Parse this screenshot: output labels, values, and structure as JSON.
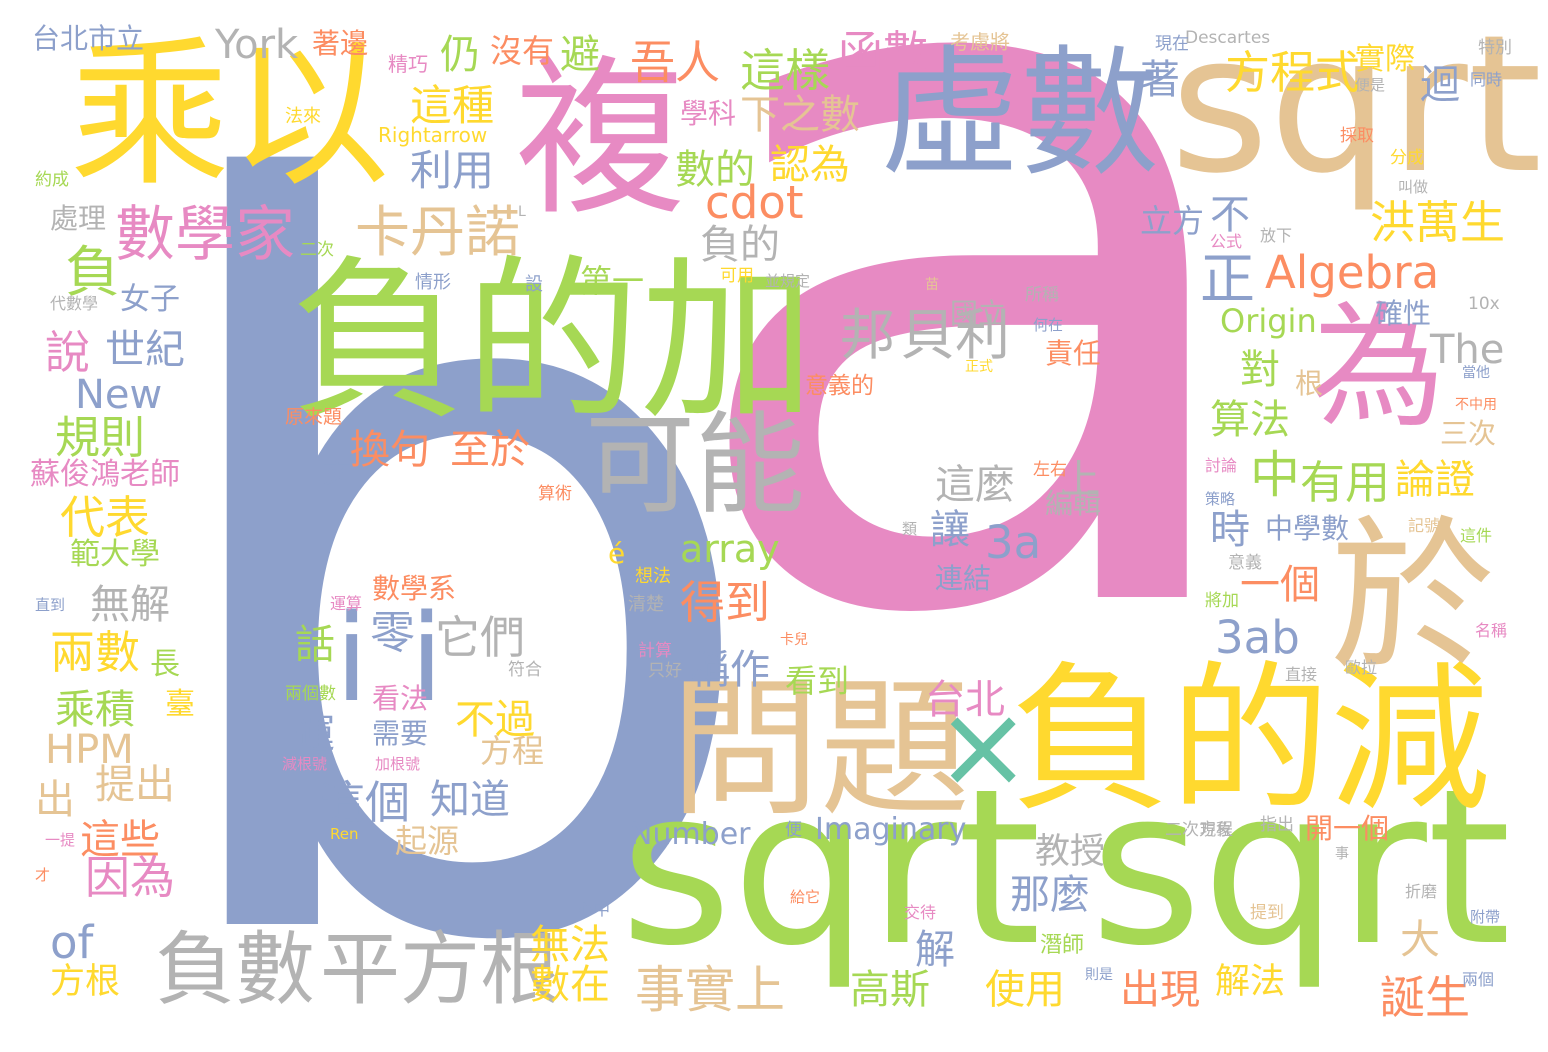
{
  "palette": {
    "green": "#a6d854",
    "yellow": "#ffd92f",
    "tan": "#e5c494",
    "blue": "#8da0cb",
    "pink": "#e78ac3",
    "orange": "#fc8d62",
    "gray": "#b3b3b3",
    "teal": "#66c2a5"
  },
  "words": [
    {
      "text": "a",
      "color": "pink"
    },
    {
      "text": "b",
      "color": "blue"
    },
    {
      "text": "sqrt",
      "color": "green"
    },
    {
      "text": "sqrt",
      "color": "green"
    },
    {
      "text": "sqrt",
      "color": "tan"
    },
    {
      "text": "乘以",
      "color": "yellow"
    },
    {
      "text": "複",
      "color": "pink"
    },
    {
      "text": "虛數",
      "color": "blue"
    },
    {
      "text": "負的加",
      "color": "green"
    },
    {
      "text": "為",
      "color": "pink"
    },
    {
      "text": "於",
      "color": "tan"
    },
    {
      "text": "負的減",
      "color": "yellow"
    },
    {
      "text": "問題",
      "color": "tan"
    },
    {
      "text": "×",
      "color": "teal"
    },
    {
      "text": "可能",
      "color": "gray"
    },
    {
      "text": "i",
      "color": "blue"
    },
    {
      "text": "i",
      "color": "blue"
    },
    {
      "text": "負數",
      "color": "gray"
    },
    {
      "text": "平方根",
      "color": "gray"
    },
    {
      "text": "數學家",
      "color": "pink"
    },
    {
      "text": "負",
      "color": "green"
    },
    {
      "text": "卡丹諾",
      "color": "tan"
    },
    {
      "text": "邦",
      "color": "gray"
    },
    {
      "text": "貝利",
      "color": "gray"
    },
    {
      "text": "Algebra",
      "color": "orange"
    },
    {
      "text": "cdot",
      "color": "orange"
    },
    {
      "text": "事實上",
      "color": "tan"
    },
    {
      "text": "中",
      "color": "green"
    },
    {
      "text": "有用",
      "color": "green"
    },
    {
      "text": "3a",
      "color": "blue"
    },
    {
      "text": "3ab",
      "color": "blue"
    },
    {
      "text": "洪萬生",
      "color": "yellow"
    },
    {
      "text": "方程式",
      "color": "yellow"
    },
    {
      "text": "吾人",
      "color": "orange"
    },
    {
      "text": "這樣",
      "color": "green"
    },
    {
      "text": "函數",
      "color": "pink"
    },
    {
      "text": "正",
      "color": "blue"
    },
    {
      "text": "York",
      "color": "gray"
    },
    {
      "text": "台北市立",
      "color": "blue"
    },
    {
      "text": "著邊",
      "color": "orange"
    },
    {
      "text": "仍",
      "color": "green"
    },
    {
      "text": "沒有",
      "color": "orange"
    },
    {
      "text": "避",
      "color": "green"
    },
    {
      "text": "這種",
      "color": "yellow"
    },
    {
      "text": "利用",
      "color": "blue"
    },
    {
      "text": "學科",
      "color": "pink"
    },
    {
      "text": "下之數",
      "color": "tan"
    },
    {
      "text": "數的",
      "color": "green"
    },
    {
      "text": "認為",
      "color": "yellow"
    },
    {
      "text": "負的",
      "color": "gray"
    },
    {
      "text": "說",
      "color": "pink"
    },
    {
      "text": "世紀",
      "color": "blue"
    },
    {
      "text": "New",
      "color": "blue"
    },
    {
      "text": "規則",
      "color": "green"
    },
    {
      "text": "代表",
      "color": "yellow"
    },
    {
      "text": "範大學",
      "color": "green"
    },
    {
      "text": "無解",
      "color": "gray"
    },
    {
      "text": "兩數",
      "color": "yellow"
    },
    {
      "text": "乘積",
      "color": "green"
    },
    {
      "text": "HPM",
      "color": "tan"
    },
    {
      "text": "提出",
      "color": "tan"
    },
    {
      "text": "出",
      "color": "tan"
    },
    {
      "text": "這些",
      "color": "orange"
    },
    {
      "text": "因為",
      "color": "pink"
    },
    {
      "text": "of",
      "color": "blue"
    },
    {
      "text": "方根",
      "color": "yellow"
    },
    {
      "text": "換句",
      "color": "orange"
    },
    {
      "text": "至於",
      "color": "orange"
    },
    {
      "text": "零",
      "color": "blue"
    },
    {
      "text": "它們",
      "color": "gray"
    },
    {
      "text": "話",
      "color": "green"
    },
    {
      "text": "運",
      "color": "blue"
    },
    {
      "text": "不過",
      "color": "yellow"
    },
    {
      "text": "這個",
      "color": "blue"
    },
    {
      "text": "知道",
      "color": "blue"
    },
    {
      "text": "數學系",
      "color": "orange"
    },
    {
      "text": "看法",
      "color": "pink"
    },
    {
      "text": "需要",
      "color": "blue"
    },
    {
      "text": "方程",
      "color": "tan"
    },
    {
      "text": "起源",
      "color": "tan"
    },
    {
      "text": "得到",
      "color": "orange"
    },
    {
      "text": "稱作",
      "color": "blue"
    },
    {
      "text": "看到",
      "color": "green"
    },
    {
      "text": "array",
      "color": "green"
    },
    {
      "text": "台北",
      "color": "pink"
    },
    {
      "text": "這麼",
      "color": "gray"
    },
    {
      "text": "上",
      "color": "gray"
    },
    {
      "text": "讓",
      "color": "blue"
    },
    {
      "text": "連結",
      "color": "blue"
    },
    {
      "text": "一個",
      "color": "orange"
    },
    {
      "text": "國立",
      "color": "gray"
    },
    {
      "text": "論證",
      "color": "yellow"
    },
    {
      "text": "算法",
      "color": "green"
    },
    {
      "text": "對",
      "color": "green"
    },
    {
      "text": "時",
      "color": "blue"
    },
    {
      "text": "中學數",
      "color": "blue"
    },
    {
      "text": "The",
      "color": "gray"
    },
    {
      "text": "Origin",
      "color": "green"
    },
    {
      "text": "確性",
      "color": "blue"
    },
    {
      "text": "立方",
      "color": "blue"
    },
    {
      "text": "不",
      "color": "blue"
    },
    {
      "text": "著",
      "color": "blue"
    },
    {
      "text": "迴",
      "color": "blue"
    },
    {
      "text": "實際",
      "color": "yellow"
    },
    {
      "text": "Imaginary",
      "color": "blue"
    },
    {
      "text": "Number",
      "color": "blue"
    },
    {
      "text": "教授",
      "color": "gray"
    },
    {
      "text": "那麼",
      "color": "blue"
    },
    {
      "text": "解",
      "color": "blue"
    },
    {
      "text": "高斯",
      "color": "green"
    },
    {
      "text": "使用",
      "color": "yellow"
    },
    {
      "text": "出現",
      "color": "orange"
    },
    {
      "text": "解法",
      "color": "yellow"
    },
    {
      "text": "誕生",
      "color": "orange"
    },
    {
      "text": "大",
      "color": "tan"
    },
    {
      "text": "無法",
      "color": "yellow"
    },
    {
      "text": "數在",
      "color": "yellow"
    },
    {
      "text": "一文",
      "color": "blue"
    },
    {
      "text": "蘇俊鴻老師",
      "color": "pink"
    },
    {
      "text": "處理",
      "color": "gray"
    },
    {
      "text": "女子",
      "color": "blue"
    },
    {
      "text": "長",
      "color": "green"
    },
    {
      "text": "臺",
      "color": "yellow"
    },
    {
      "text": "第一",
      "color": "green"
    },
    {
      "text": "責任",
      "color": "orange"
    },
    {
      "text": "編輯",
      "color": "gray"
    },
    {
      "text": "開一個",
      "color": "orange"
    },
    {
      "text": "根",
      "color": "tan"
    },
    {
      "text": "三次",
      "color": "tan"
    },
    {
      "text": "é",
      "color": "yellow"
    },
    {
      "text": "Descartes",
      "color": "gray"
    },
    {
      "text": "考慮將",
      "color": "tan"
    },
    {
      "text": "現在",
      "color": "blue"
    },
    {
      "text": "特別",
      "color": "gray"
    },
    {
      "text": "精巧",
      "color": "pink"
    },
    {
      "text": "Rightarrow",
      "color": "yellow"
    },
    {
      "text": "法來",
      "color": "yellow"
    },
    {
      "text": "約成",
      "color": "green"
    },
    {
      "text": "二次",
      "color": "green"
    },
    {
      "text": "代數學",
      "color": "gray"
    },
    {
      "text": "情形",
      "color": "blue"
    },
    {
      "text": "設",
      "color": "blue"
    },
    {
      "text": "可用",
      "color": "yellow"
    },
    {
      "text": "並規定",
      "color": "gray"
    },
    {
      "text": "所稱",
      "color": "gray"
    },
    {
      "text": "何在",
      "color": "blue"
    },
    {
      "text": "正式",
      "color": "yellow"
    },
    {
      "text": "意義的",
      "color": "orange"
    },
    {
      "text": "原來題",
      "color": "orange"
    },
    {
      "text": "算術",
      "color": "orange"
    },
    {
      "text": "左右",
      "color": "orange"
    },
    {
      "text": "討論",
      "color": "pink"
    },
    {
      "text": "策略",
      "color": "blue"
    },
    {
      "text": "記號",
      "color": "tan"
    },
    {
      "text": "這件",
      "color": "green"
    },
    {
      "text": "意義",
      "color": "gray"
    },
    {
      "text": "將加",
      "color": "green"
    },
    {
      "text": "名稱",
      "color": "pink"
    },
    {
      "text": "想法",
      "color": "yellow"
    },
    {
      "text": "清楚",
      "color": "gray"
    },
    {
      "text": "運算",
      "color": "pink"
    },
    {
      "text": "計算",
      "color": "pink"
    },
    {
      "text": "卡兒",
      "color": "orange"
    },
    {
      "text": "符合",
      "color": "gray"
    },
    {
      "text": "只好",
      "color": "gray"
    },
    {
      "text": "直接",
      "color": "gray"
    },
    {
      "text": "歐拉",
      "color": "gray"
    },
    {
      "text": "兩個數",
      "color": "green"
    },
    {
      "text": "減根號",
      "color": "pink"
    },
    {
      "text": "加根號",
      "color": "pink"
    },
    {
      "text": "Ren",
      "color": "yellow"
    },
    {
      "text": "一提",
      "color": "pink"
    },
    {
      "text": "才",
      "color": "orange"
    },
    {
      "text": "便",
      "color": "blue"
    },
    {
      "text": "指出",
      "color": "gray"
    },
    {
      "text": "現象",
      "color": "gray"
    },
    {
      "text": "二次方程",
      "color": "gray"
    },
    {
      "text": "事",
      "color": "gray"
    },
    {
      "text": "心中",
      "color": "blue"
    },
    {
      "text": "給它",
      "color": "orange"
    },
    {
      "text": "交待",
      "color": "pink"
    },
    {
      "text": "提到",
      "color": "tan"
    },
    {
      "text": "附帶",
      "color": "blue"
    },
    {
      "text": "折磨",
      "color": "gray"
    },
    {
      "text": "則是",
      "color": "blue"
    },
    {
      "text": "兩個",
      "color": "blue"
    },
    {
      "text": "潛師",
      "color": "green"
    },
    {
      "text": "10x",
      "color": "gray"
    },
    {
      "text": "當他",
      "color": "blue"
    },
    {
      "text": "不中用",
      "color": "orange"
    },
    {
      "text": "公式",
      "color": "pink"
    },
    {
      "text": "放下",
      "color": "gray"
    },
    {
      "text": "叫做",
      "color": "gray"
    },
    {
      "text": "分成",
      "color": "yellow"
    },
    {
      "text": "採取",
      "color": "orange"
    },
    {
      "text": "同時",
      "color": "blue"
    },
    {
      "text": "便是",
      "color": "gray"
    },
    {
      "text": "直到",
      "color": "blue"
    },
    {
      "text": "類",
      "color": "gray"
    },
    {
      "text": "L",
      "color": "gray"
    },
    {
      "text": "苗",
      "color": "tan"
    }
  ]
}
